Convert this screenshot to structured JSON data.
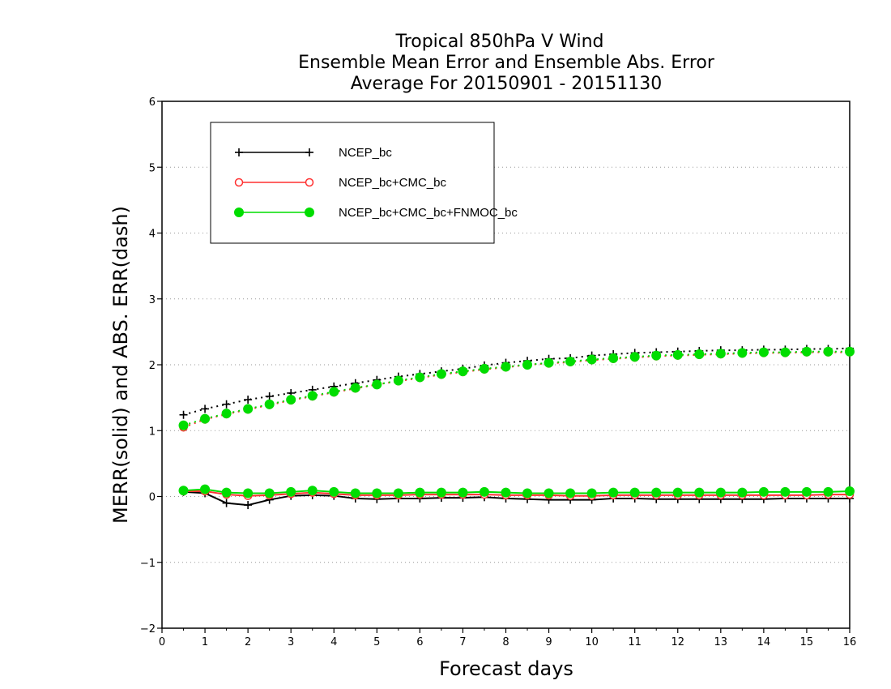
{
  "chart_data": {
    "type": "line",
    "title_lines": [
      "Tropical 850hPa V Wind",
      "Ensemble Mean Error and Ensemble Abs. Error",
      "Average For 20150901 - 20151130"
    ],
    "xlabel": "Forecast days",
    "ylabel": "MERR(solid) and ABS. ERR(dash)",
    "xlim": [
      0,
      16
    ],
    "ylim": [
      -2,
      6
    ],
    "xticks": [
      "0",
      "1",
      "2",
      "3",
      "4",
      "5",
      "6",
      "7",
      "8",
      "9",
      "10",
      "11",
      "12",
      "13",
      "14",
      "15",
      "16"
    ],
    "yticks": [
      "−2",
      "−1",
      "0",
      "1",
      "2",
      "3",
      "4",
      "5",
      "6"
    ],
    "grid": "horizontal dotted",
    "legend_position": "top-left",
    "x": [
      0.5,
      1,
      1.5,
      2,
      2.5,
      3,
      3.5,
      4,
      4.5,
      5,
      5.5,
      6,
      6.5,
      7,
      7.5,
      8,
      8.5,
      9,
      9.5,
      10,
      10.5,
      11,
      11.5,
      12,
      12.5,
      13,
      13.5,
      14,
      14.5,
      15,
      15.5,
      16
    ],
    "series": [
      {
        "name": "NCEP_bc",
        "color": "#000000",
        "marker": "plus",
        "merr": [
          0.07,
          0.05,
          -0.1,
          -0.13,
          -0.05,
          0.01,
          0.02,
          0.01,
          -0.03,
          -0.04,
          -0.03,
          -0.03,
          -0.02,
          -0.02,
          -0.01,
          -0.03,
          -0.04,
          -0.05,
          -0.05,
          -0.05,
          -0.03,
          -0.03,
          -0.04,
          -0.04,
          -0.04,
          -0.04,
          -0.04,
          -0.04,
          -0.03,
          -0.03,
          -0.03,
          -0.03
        ],
        "abserr": [
          1.24,
          1.33,
          1.4,
          1.47,
          1.52,
          1.57,
          1.62,
          1.67,
          1.72,
          1.77,
          1.82,
          1.86,
          1.9,
          1.94,
          1.99,
          2.03,
          2.06,
          2.09,
          2.1,
          2.14,
          2.16,
          2.18,
          2.19,
          2.2,
          2.21,
          2.22,
          2.22,
          2.23,
          2.23,
          2.24,
          2.24,
          2.25
        ]
      },
      {
        "name": "NCEP_bc+CMC_bc",
        "color": "#ff3030",
        "marker": "open-circle",
        "merr": [
          0.08,
          0.08,
          0.03,
          0.01,
          0.02,
          0.04,
          0.06,
          0.04,
          0.02,
          0.02,
          0.02,
          0.03,
          0.03,
          0.03,
          0.03,
          0.02,
          0.02,
          0.02,
          0.01,
          0.01,
          0.02,
          0.02,
          0.02,
          0.02,
          0.02,
          0.02,
          0.02,
          0.02,
          0.02,
          0.02,
          0.03,
          0.03
        ],
        "abserr": [
          1.05,
          1.17,
          1.25,
          1.32,
          1.39,
          1.46,
          1.52,
          1.58,
          1.64,
          1.7,
          1.75,
          1.8,
          1.85,
          1.89,
          1.93,
          1.96,
          2.0,
          2.02,
          2.04,
          2.07,
          2.09,
          2.11,
          2.13,
          2.14,
          2.15,
          2.16,
          2.17,
          2.18,
          2.18,
          2.19,
          2.19,
          2.19
        ]
      },
      {
        "name": "NCEP_bc+CMC_bc+FNMOC_bc",
        "color": "#00dd00",
        "marker": "filled-circle",
        "merr": [
          0.09,
          0.11,
          0.06,
          0.05,
          0.05,
          0.07,
          0.09,
          0.07,
          0.05,
          0.05,
          0.05,
          0.06,
          0.06,
          0.06,
          0.07,
          0.06,
          0.05,
          0.05,
          0.05,
          0.05,
          0.06,
          0.06,
          0.06,
          0.06,
          0.06,
          0.06,
          0.06,
          0.07,
          0.07,
          0.07,
          0.07,
          0.08
        ],
        "abserr": [
          1.08,
          1.18,
          1.26,
          1.33,
          1.4,
          1.47,
          1.53,
          1.59,
          1.65,
          1.7,
          1.76,
          1.81,
          1.86,
          1.9,
          1.94,
          1.97,
          2.0,
          2.03,
          2.05,
          2.08,
          2.1,
          2.12,
          2.14,
          2.15,
          2.16,
          2.17,
          2.18,
          2.19,
          2.19,
          2.2,
          2.2,
          2.2
        ]
      }
    ]
  }
}
